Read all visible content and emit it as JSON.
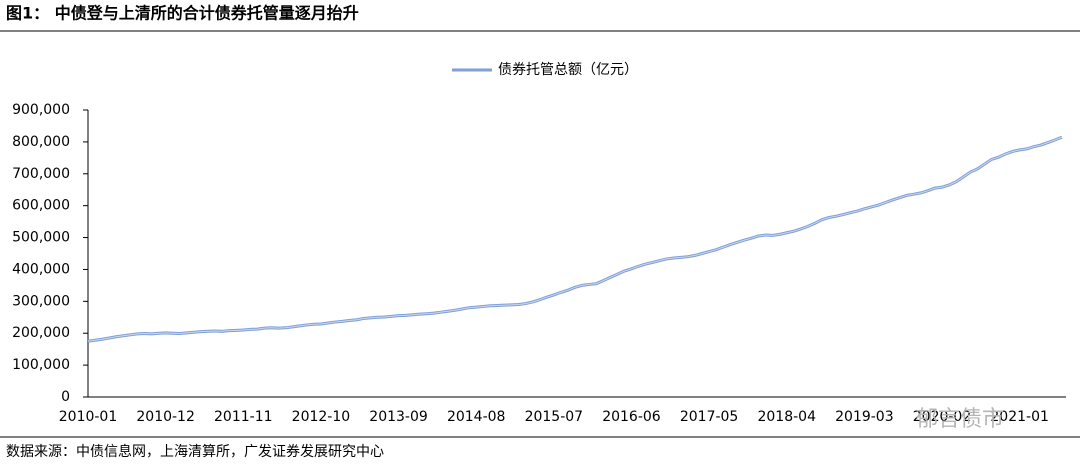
{
  "chart_data": {
    "type": "line",
    "title": "图1： 中债登与上清所的合计债券托管量逐月抬升",
    "source": "数据来源：中债信息网，上海清算所，广发证券发展研究中心",
    "watermark": "郁言债市",
    "categories": [
      "2010-01",
      null,
      null,
      null,
      null,
      null,
      null,
      null,
      null,
      null,
      null,
      "2010-12",
      null,
      null,
      null,
      null,
      null,
      null,
      null,
      null,
      null,
      null,
      "2011-11",
      null,
      null,
      null,
      null,
      null,
      null,
      null,
      null,
      null,
      null,
      "2012-10",
      null,
      null,
      null,
      null,
      null,
      null,
      null,
      null,
      null,
      null,
      "2013-09",
      null,
      null,
      null,
      null,
      null,
      null,
      null,
      null,
      null,
      null,
      "2014-08",
      null,
      null,
      null,
      null,
      null,
      null,
      null,
      null,
      null,
      null,
      "2015-07",
      null,
      null,
      null,
      null,
      null,
      null,
      null,
      null,
      null,
      null,
      "2016-06",
      null,
      null,
      null,
      null,
      null,
      null,
      null,
      null,
      null,
      null,
      "2017-05",
      null,
      null,
      null,
      null,
      null,
      null,
      null,
      null,
      null,
      null,
      "2018-04",
      null,
      null,
      null,
      null,
      null,
      null,
      null,
      null,
      null,
      null,
      "2019-03",
      null,
      null,
      null,
      null,
      null,
      null,
      null,
      null,
      null,
      null,
      "2020-02",
      null,
      null,
      null,
      null,
      null,
      null,
      null,
      null,
      null,
      null,
      "2021-01",
      null,
      null,
      null,
      null,
      null,
      null
    ],
    "series": [
      {
        "name": "债券托管总额（亿元）",
        "color": "#7f9fd6",
        "values": [
          175000,
          178000,
          181000,
          185000,
          189000,
          192000,
          195000,
          198000,
          199000,
          198000,
          200000,
          201000,
          200000,
          199000,
          201000,
          203000,
          205000,
          206000,
          207000,
          206000,
          208000,
          209000,
          210000,
          212000,
          213000,
          216000,
          217000,
          216000,
          217000,
          220000,
          223000,
          226000,
          228000,
          229000,
          232000,
          235000,
          237000,
          240000,
          242000,
          246000,
          248000,
          250000,
          251000,
          253000,
          255000,
          256000,
          258000,
          260000,
          261000,
          263000,
          266000,
          269000,
          272000,
          276000,
          280000,
          282000,
          284000,
          286000,
          287000,
          288000,
          289000,
          290000,
          293000,
          298000,
          305000,
          313000,
          320000,
          328000,
          335000,
          344000,
          350000,
          353000,
          355000,
          365000,
          375000,
          385000,
          395000,
          402000,
          410000,
          417000,
          422000,
          428000,
          433000,
          436000,
          438000,
          440000,
          444000,
          450000,
          456000,
          462000,
          470000,
          478000,
          485000,
          492000,
          498000,
          505000,
          508000,
          507000,
          510000,
          515000,
          520000,
          527000,
          535000,
          545000,
          556000,
          563000,
          567000,
          572000,
          578000,
          583000,
          590000,
          596000,
          602000,
          610000,
          618000,
          625000,
          632000,
          636000,
          640000,
          647000,
          655000,
          658000,
          665000,
          675000,
          690000,
          705000,
          715000,
          730000,
          745000,
          752000,
          762000,
          770000,
          775000,
          778000,
          785000,
          790000,
          798000,
          806000,
          815000
        ]
      }
    ],
    "ylim": [
      0,
      900000
    ],
    "yticks": [
      0,
      {
        "value": 100000,
        "label": "100,000"
      },
      {
        "value": 200000,
        "label": "200,000"
      },
      {
        "value": 300000,
        "label": "300,000"
      },
      {
        "value": 400000,
        "label": "400,000"
      },
      {
        "value": 500000,
        "label": "500,000"
      },
      {
        "value": 600000,
        "label": "600,000"
      },
      {
        "value": 700000,
        "label": "700,000"
      },
      {
        "value": 800000,
        "label": "800,000"
      },
      {
        "value": 900000,
        "label": "900,000"
      }
    ],
    "legend": "top"
  }
}
